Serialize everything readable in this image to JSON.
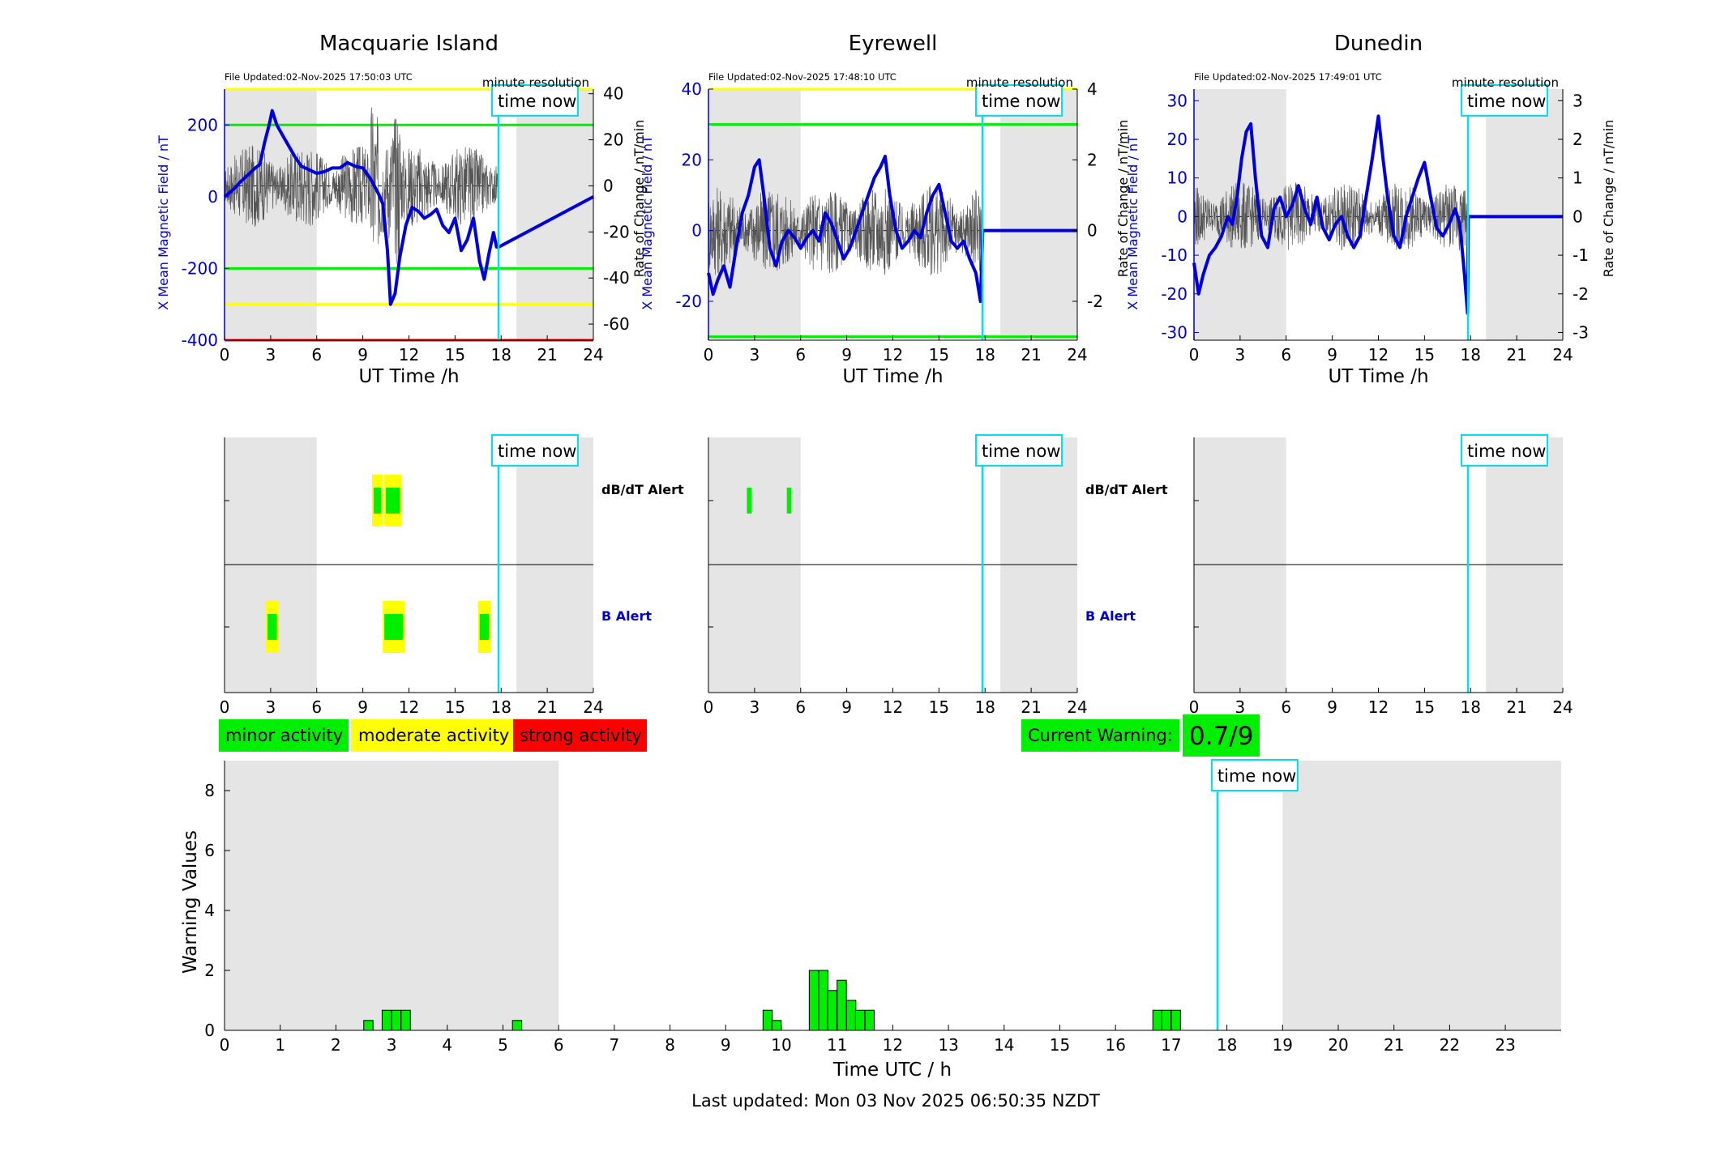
{
  "colors": {
    "field_line": "#0000dd",
    "rate_line": "#555555",
    "night_shade": "#e5e5e5",
    "time_now": "#00e0f0",
    "minor": "#00ee00",
    "moderate": "#ffff00",
    "strong": "#ff0000",
    "axis_blue": "#0000cc"
  },
  "labels": {
    "time_now": "time now",
    "minute_resolution": "minute resolution",
    "ut_time": "UT Time /h",
    "ylabel_field": "X Mean Magnetic Field / nT",
    "ylabel_rate": "Rate of Change / nT/min",
    "dbdt_alert": "dB/dT Alert",
    "b_alert": "B Alert"
  },
  "legend": {
    "minor": "minor activity",
    "moderate": "moderate activity",
    "strong": "strong activity"
  },
  "current_warning": {
    "label": "Current Warning:",
    "value": "0.7/9"
  },
  "footer": "Last updated: Mon 03 Nov 2025 06:50:35 NZDT",
  "stations": [
    {
      "name": "Macquarie Island",
      "file_updated": "File Updated:02-Nov-2025 17:50:03 UTC",
      "ylim_field": [
        -400,
        300
      ],
      "yticks_field": [
        "-400",
        "-200",
        "0",
        "200"
      ],
      "ylim_rate": [
        -67,
        42
      ],
      "yticks_rate": [
        "-60",
        "-40",
        "-20",
        "0",
        "20",
        "40"
      ],
      "thresholds": [
        {
          "value": 300,
          "color": "#ffff00"
        },
        {
          "value": 200,
          "color": "#00ee00"
        },
        {
          "value": -200,
          "color": "#00ee00"
        },
        {
          "value": -300,
          "color": "#ffff00"
        },
        {
          "value": -400,
          "color": "#ff0000"
        }
      ],
      "field_series": [
        [
          0,
          0
        ],
        [
          0.3,
          10
        ],
        [
          0.7,
          25
        ],
        [
          1,
          40
        ],
        [
          1.5,
          60
        ],
        [
          2,
          80
        ],
        [
          2.3,
          90
        ],
        [
          2.6,
          150
        ],
        [
          2.9,
          200
        ],
        [
          3.1,
          240
        ],
        [
          3.4,
          200
        ],
        [
          3.8,
          170
        ],
        [
          4.2,
          140
        ],
        [
          4.6,
          110
        ],
        [
          5,
          85
        ],
        [
          5.5,
          75
        ],
        [
          6,
          65
        ],
        [
          6.5,
          70
        ],
        [
          7,
          80
        ],
        [
          7.5,
          80
        ],
        [
          8,
          95
        ],
        [
          8.5,
          85
        ],
        [
          9,
          80
        ],
        [
          9.5,
          50
        ],
        [
          10,
          10
        ],
        [
          10.3,
          -20
        ],
        [
          10.6,
          -150
        ],
        [
          10.8,
          -300
        ],
        [
          11.1,
          -270
        ],
        [
          11.4,
          -170
        ],
        [
          11.8,
          -80
        ],
        [
          12.2,
          -30
        ],
        [
          12.6,
          -40
        ],
        [
          13,
          -60
        ],
        [
          13.4,
          -50
        ],
        [
          13.8,
          -35
        ],
        [
          14.2,
          -80
        ],
        [
          14.6,
          -100
        ],
        [
          15,
          -60
        ],
        [
          15.4,
          -150
        ],
        [
          15.8,
          -120
        ],
        [
          16.2,
          -60
        ],
        [
          16.6,
          -180
        ],
        [
          16.9,
          -230
        ],
        [
          17.2,
          -160
        ],
        [
          17.5,
          -100
        ],
        [
          17.7,
          -140
        ],
        [
          17.85,
          -140
        ],
        [
          24,
          0
        ]
      ],
      "rate_amp": 18,
      "dbdt_alerts": [
        {
          "start": 9.7,
          "end": 10.2,
          "level": "minor"
        },
        {
          "start": 10.5,
          "end": 11.4,
          "level": "minor"
        }
      ],
      "b_alerts": [
        {
          "start": 2.8,
          "end": 3.4,
          "level": "minor"
        },
        {
          "start": 10.4,
          "end": 11.6,
          "level": "minor"
        },
        {
          "start": 16.6,
          "end": 17.2,
          "level": "minor"
        }
      ]
    },
    {
      "name": "Eyrewell",
      "file_updated": "File Updated:02-Nov-2025 17:48:10 UTC",
      "ylim_field": [
        -31,
        40
      ],
      "yticks_field": [
        "-20",
        "0",
        "20",
        "40"
      ],
      "ylim_rate": [
        -3.1,
        4
      ],
      "yticks_rate": [
        "-2",
        "0",
        "2",
        "4"
      ],
      "thresholds": [
        {
          "value": 40,
          "color": "#ffff00"
        },
        {
          "value": 30,
          "color": "#00ee00"
        },
        {
          "value": -30,
          "color": "#00ee00"
        }
      ],
      "field_series": [
        [
          0,
          -12
        ],
        [
          0.3,
          -18
        ],
        [
          0.6,
          -14
        ],
        [
          1,
          -10
        ],
        [
          1.4,
          -16
        ],
        [
          1.8,
          -5
        ],
        [
          2.2,
          5
        ],
        [
          2.6,
          10
        ],
        [
          3,
          18
        ],
        [
          3.3,
          20
        ],
        [
          3.6,
          10
        ],
        [
          4,
          -5
        ],
        [
          4.4,
          -10
        ],
        [
          4.8,
          -3
        ],
        [
          5.2,
          0
        ],
        [
          5.6,
          -2
        ],
        [
          6,
          -5
        ],
        [
          6.4,
          -2
        ],
        [
          6.8,
          0
        ],
        [
          7.2,
          -3
        ],
        [
          7.6,
          5
        ],
        [
          8,
          2
        ],
        [
          8.4,
          -3
        ],
        [
          8.8,
          -8
        ],
        [
          9.2,
          -5
        ],
        [
          9.6,
          0
        ],
        [
          10,
          5
        ],
        [
          10.4,
          10
        ],
        [
          10.8,
          15
        ],
        [
          11.2,
          18
        ],
        [
          11.5,
          21
        ],
        [
          11.8,
          10
        ],
        [
          12.2,
          0
        ],
        [
          12.6,
          -5
        ],
        [
          13,
          -3
        ],
        [
          13.4,
          0
        ],
        [
          13.8,
          -2
        ],
        [
          14.2,
          5
        ],
        [
          14.6,
          10
        ],
        [
          15,
          13
        ],
        [
          15.4,
          5
        ],
        [
          15.8,
          -3
        ],
        [
          16.2,
          -5
        ],
        [
          16.6,
          -3
        ],
        [
          17,
          -8
        ],
        [
          17.4,
          -12
        ],
        [
          17.7,
          -20
        ],
        [
          17.85,
          0
        ],
        [
          24,
          0
        ]
      ],
      "rate_amp": 1.3,
      "dbdt_alerts": [
        {
          "start": 2.5,
          "end": 2.8,
          "level": "minor"
        },
        {
          "start": 5.1,
          "end": 5.4,
          "level": "minor"
        }
      ],
      "b_alerts": []
    },
    {
      "name": "Dunedin",
      "file_updated": "File Updated:02-Nov-2025 17:49:01 UTC",
      "ylim_field": [
        -32,
        33
      ],
      "yticks_field": [
        "-30",
        "-20",
        "-10",
        "0",
        "10",
        "20",
        "30"
      ],
      "ylim_rate": [
        -3.2,
        3.3
      ],
      "yticks_rate": [
        "-3",
        "-2",
        "-1",
        "0",
        "1",
        "2",
        "3"
      ],
      "thresholds": [],
      "field_series": [
        [
          0,
          -12
        ],
        [
          0.3,
          -20
        ],
        [
          0.6,
          -15
        ],
        [
          1,
          -10
        ],
        [
          1.4,
          -8
        ],
        [
          1.8,
          -5
        ],
        [
          2.2,
          0
        ],
        [
          2.5,
          -2
        ],
        [
          2.8,
          5
        ],
        [
          3.1,
          15
        ],
        [
          3.4,
          22
        ],
        [
          3.7,
          24
        ],
        [
          4,
          10
        ],
        [
          4.4,
          -5
        ],
        [
          4.8,
          -8
        ],
        [
          5.2,
          2
        ],
        [
          5.6,
          5
        ],
        [
          6,
          0
        ],
        [
          6.4,
          3
        ],
        [
          6.8,
          8
        ],
        [
          7.2,
          2
        ],
        [
          7.6,
          -2
        ],
        [
          8,
          5
        ],
        [
          8.4,
          -3
        ],
        [
          8.8,
          -6
        ],
        [
          9.2,
          -2
        ],
        [
          9.6,
          0
        ],
        [
          10,
          -5
        ],
        [
          10.4,
          -8
        ],
        [
          10.8,
          -5
        ],
        [
          11.2,
          5
        ],
        [
          11.6,
          15
        ],
        [
          12,
          26
        ],
        [
          12.3,
          15
        ],
        [
          12.6,
          5
        ],
        [
          13,
          -5
        ],
        [
          13.4,
          -8
        ],
        [
          13.8,
          0
        ],
        [
          14.2,
          5
        ],
        [
          14.6,
          10
        ],
        [
          15,
          14
        ],
        [
          15.4,
          5
        ],
        [
          15.8,
          -3
        ],
        [
          16.2,
          -5
        ],
        [
          16.6,
          -2
        ],
        [
          17,
          2
        ],
        [
          17.3,
          -2
        ],
        [
          17.6,
          -15
        ],
        [
          17.8,
          -25
        ],
        [
          17.85,
          0
        ],
        [
          24,
          0
        ]
      ],
      "rate_amp": 0.9,
      "dbdt_alerts": [],
      "b_alerts": []
    }
  ],
  "chart_data": {
    "type": "bar",
    "title": "",
    "xlabel": "Time UTC / h",
    "ylabel": "Warning Values",
    "xlim": [
      0,
      24
    ],
    "ylim": [
      0,
      9
    ],
    "xticks": [
      "0",
      "1",
      "2",
      "3",
      "4",
      "5",
      "6",
      "7",
      "8",
      "9",
      "10",
      "11",
      "12",
      "13",
      "14",
      "15",
      "16",
      "17",
      "18",
      "19",
      "20",
      "21",
      "22",
      "23"
    ],
    "yticks": [
      "0",
      "2",
      "4",
      "6",
      "8"
    ],
    "bar_width_h": 0.1667,
    "bars": [
      {
        "t": 2.5,
        "v": 0.33
      },
      {
        "t": 2.83,
        "v": 0.67
      },
      {
        "t": 3.0,
        "v": 0.67
      },
      {
        "t": 3.17,
        "v": 0.67
      },
      {
        "t": 5.17,
        "v": 0.33
      },
      {
        "t": 9.67,
        "v": 0.67
      },
      {
        "t": 9.83,
        "v": 0.33
      },
      {
        "t": 10.5,
        "v": 2.0
      },
      {
        "t": 10.67,
        "v": 2.0
      },
      {
        "t": 10.83,
        "v": 1.33
      },
      {
        "t": 11.0,
        "v": 1.67
      },
      {
        "t": 11.17,
        "v": 1.0
      },
      {
        "t": 11.33,
        "v": 0.67
      },
      {
        "t": 11.5,
        "v": 0.67
      },
      {
        "t": 16.67,
        "v": 0.67
      },
      {
        "t": 16.83,
        "v": 0.67
      },
      {
        "t": 17.0,
        "v": 0.67
      }
    ],
    "time_now": 17.83,
    "night_shading": [
      [
        0,
        6
      ],
      [
        19,
        24
      ]
    ]
  },
  "time_now_h": 17.83,
  "night_small": [
    [
      0,
      6
    ],
    [
      19,
      24
    ]
  ],
  "x_ticks_small": [
    "0",
    "3",
    "6",
    "9",
    "12",
    "15",
    "18",
    "21",
    "24"
  ]
}
